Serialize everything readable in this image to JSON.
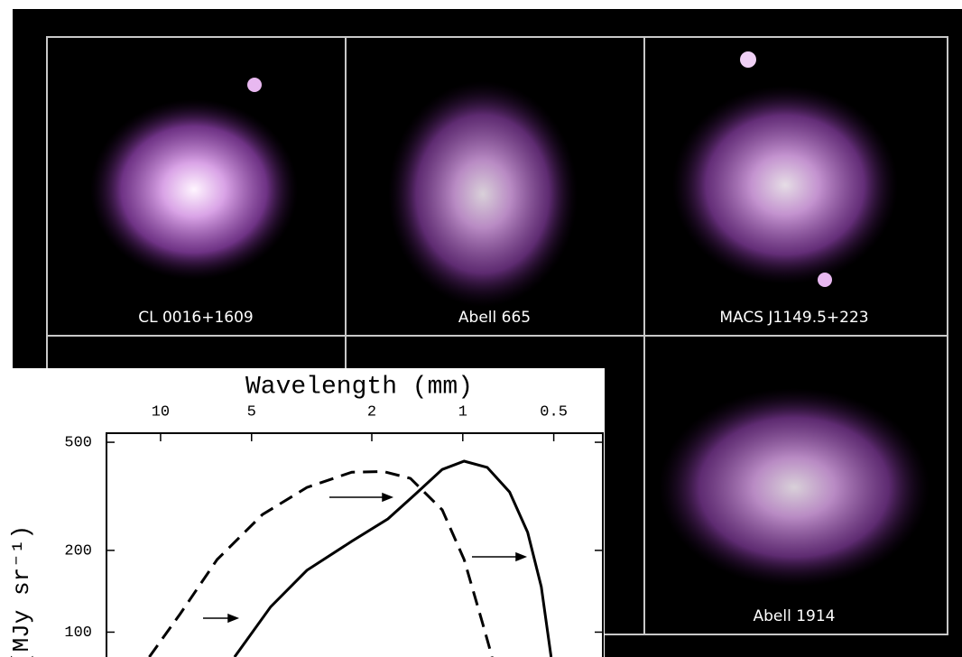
{
  "images": {
    "panels": [
      "CL 0016+1609",
      "Abell 665",
      "MACS J1149.5+223",
      "Abell 1914"
    ]
  },
  "chart_data": {
    "type": "line",
    "title": "Wavelength (mm)",
    "y_label": "(MJy sr⁻¹)",
    "xscale": "log",
    "yscale": "log",
    "xlim": [
      15.1,
      0.344
    ],
    "ylim": [
      81,
      540
    ],
    "xticks": [
      10,
      5,
      2,
      1,
      0.5
    ],
    "yticks": [
      500,
      200,
      100
    ],
    "series": [
      {
        "color": "#000000",
        "style": "solid",
        "x": [
          5.69,
          4.32,
          3.28,
          2.33,
          1.77,
          1.44,
          1.17,
          0.99,
          0.83,
          0.7,
          0.61,
          0.55,
          0.51
        ],
        "values": [
          81,
          124,
          169,
          216,
          261,
          321,
          397,
          426,
          404,
          328,
          233,
          147,
          81
        ]
      },
      {
        "color": "#000000",
        "style": "dashed",
        "x": [
          10.9,
          8.6,
          6.5,
          4.6,
          3.28,
          2.33,
          1.83,
          1.49,
          1.17,
          0.99,
          0.86,
          0.8
        ],
        "values": [
          81,
          117,
          185,
          271,
          341,
          388,
          390,
          368,
          282,
          185,
          108,
          81
        ]
      }
    ]
  }
}
